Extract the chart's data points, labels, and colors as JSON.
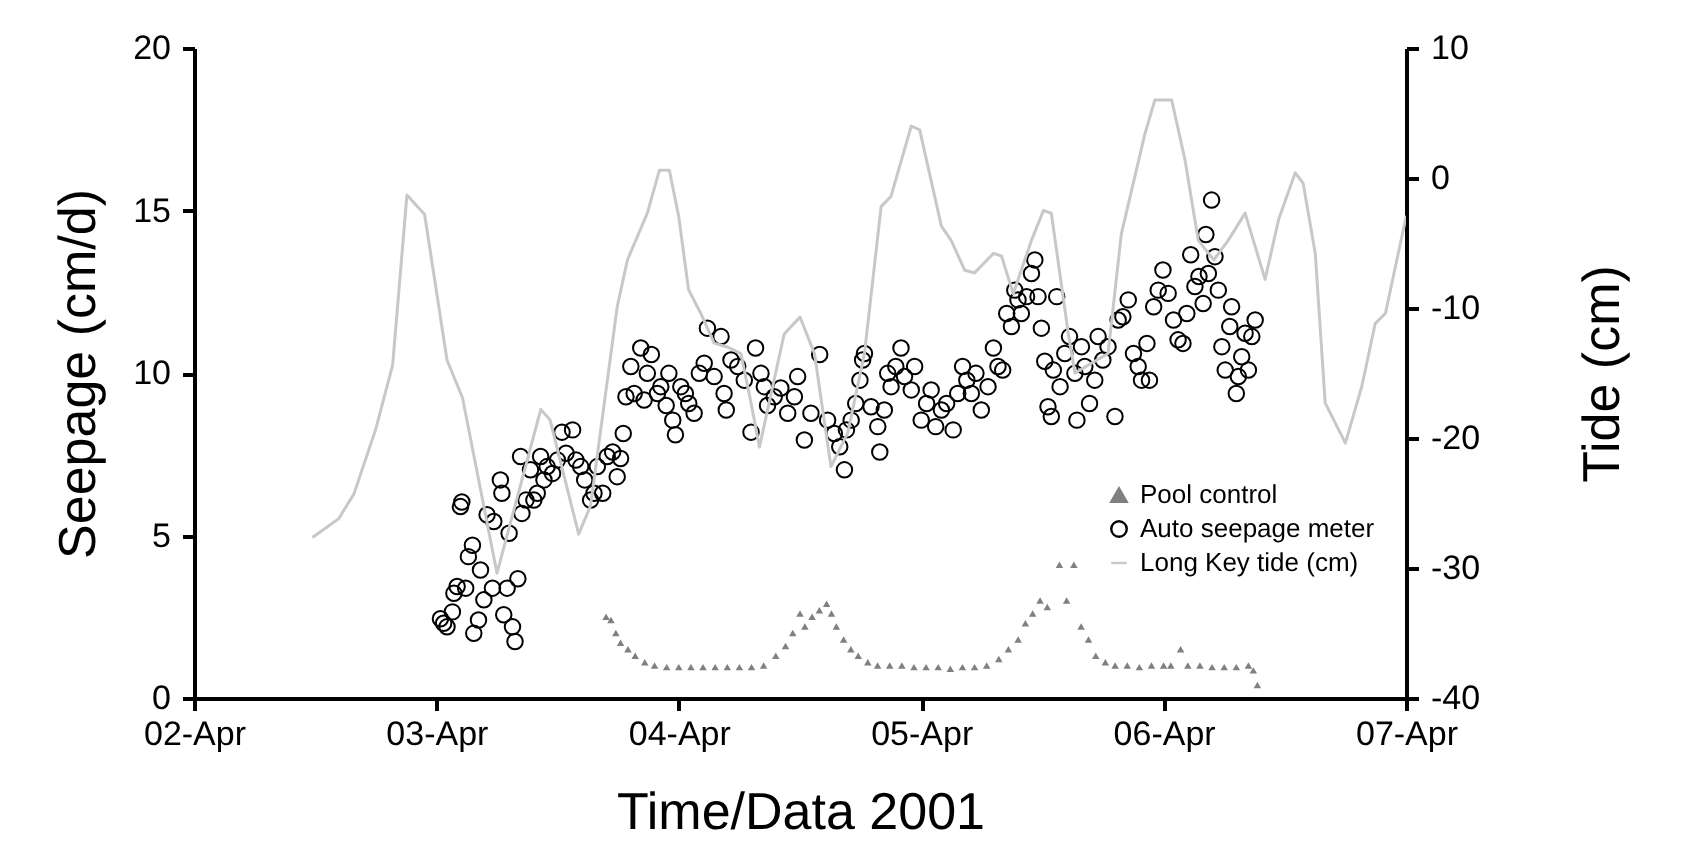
{
  "chart_data": {
    "type": "scatter",
    "xlabel": "Time/Data 2001",
    "ylabel": "Seepage (cm/d)",
    "y2label": "Tide (cm)",
    "xlim": [
      "2001-04-02",
      "2001-04-07"
    ],
    "xticks": [
      {
        "value": "2001-04-02",
        "label": "02-Apr"
      },
      {
        "value": "2001-04-03",
        "label": "03-Apr"
      },
      {
        "value": "2001-04-04",
        "label": "04-Apr"
      },
      {
        "value": "2001-04-05",
        "label": "05-Apr"
      },
      {
        "value": "2001-04-06",
        "label": "06-Apr"
      },
      {
        "value": "2001-04-07",
        "label": "07-Apr"
      }
    ],
    "ylim": [
      0,
      20
    ],
    "yticks": [
      0,
      5,
      10,
      15,
      20
    ],
    "y2lim": [
      -40,
      10
    ],
    "y2ticks": [
      -40,
      -30,
      -20,
      -10,
      0,
      10
    ],
    "grid": false,
    "legend": "bottom right",
    "series": [
      {
        "name": "Pool control",
        "marker": "triangle",
        "color": "#808080",
        "x": [
          "2001-04-03T16:48",
          "2001-04-03T17:17",
          "2001-04-03T17:46",
          "2001-04-03T18:14",
          "2001-04-03T18:58",
          "2001-04-03T19:41",
          "2001-04-03T20:38",
          "2001-04-03T21:36",
          "2001-04-03T22:48",
          "2001-04-04T00:00",
          "2001-04-04T01:12",
          "2001-04-04T02:24",
          "2001-04-04T03:36",
          "2001-04-04T04:48",
          "2001-04-04T06:00",
          "2001-04-04T07:12",
          "2001-04-04T08:24",
          "2001-04-04T09:36",
          "2001-04-04T10:34",
          "2001-04-04T11:17",
          "2001-04-04T12:00",
          "2001-04-04T12:29",
          "2001-04-04T13:12",
          "2001-04-04T13:55",
          "2001-04-04T14:38",
          "2001-04-04T15:07",
          "2001-04-04T15:36",
          "2001-04-04T16:19",
          "2001-04-04T17:02",
          "2001-04-04T17:46",
          "2001-04-04T18:43",
          "2001-04-04T19:41",
          "2001-04-04T20:53",
          "2001-04-04T22:05",
          "2001-04-04T23:17",
          "2001-04-05T00:29",
          "2001-04-05T01:41",
          "2001-04-05T02:53",
          "2001-04-05T04:05",
          "2001-04-05T05:17",
          "2001-04-05T06:29",
          "2001-04-05T07:41",
          "2001-04-05T08:38",
          "2001-04-05T09:36",
          "2001-04-05T10:19",
          "2001-04-05T11:02",
          "2001-04-05T11:46",
          "2001-04-05T12:29",
          "2001-04-05T13:41",
          "2001-04-05T14:24",
          "2001-04-05T15:07",
          "2001-04-05T15:50",
          "2001-04-05T16:34",
          "2001-04-05T17:17",
          "2001-04-05T18:14",
          "2001-04-05T19:12",
          "2001-04-05T20:24",
          "2001-04-05T21:36",
          "2001-04-05T22:48",
          "2001-04-06T00:00",
          "2001-04-06T00:43",
          "2001-04-06T01:41",
          "2001-04-06T02:24",
          "2001-04-06T03:36",
          "2001-04-06T04:48",
          "2001-04-06T06:00",
          "2001-04-06T07:12",
          "2001-04-06T08:24",
          "2001-04-06T08:53",
          "2001-04-06T09:17"
        ],
        "values": [
          2.5,
          2.4,
          2.0,
          1.7,
          1.5,
          1.3,
          1.1,
          1.0,
          0.95,
          0.95,
          0.95,
          0.95,
          0.95,
          0.95,
          0.95,
          0.95,
          1.0,
          1.3,
          1.6,
          2.0,
          2.6,
          2.2,
          2.5,
          2.7,
          2.9,
          2.6,
          2.2,
          1.8,
          1.5,
          1.3,
          1.1,
          1.0,
          1.0,
          1.0,
          0.95,
          0.95,
          0.95,
          0.9,
          0.95,
          0.95,
          1.0,
          1.2,
          1.5,
          1.8,
          2.3,
          2.6,
          3.0,
          2.8,
          4.1,
          3.0,
          4.1,
          2.2,
          1.8,
          1.3,
          1.1,
          1.0,
          1.0,
          0.95,
          1.0,
          1.0,
          1.0,
          1.5,
          1.0,
          1.0,
          0.95,
          0.95,
          0.95,
          1.0,
          0.85,
          0.4
        ]
      },
      {
        "name": "Auto seepage meter",
        "marker": "circle",
        "color": "#000000",
        "x": [
          "2001-04-03T00:24",
          "2001-04-03T00:43",
          "2001-04-03T01:03",
          "2001-04-03T01:35",
          "2001-04-03T01:44",
          "2001-04-03T02:03",
          "2001-04-03T02:23",
          "2001-04-03T02:31",
          "2001-04-03T02:54",
          "2001-04-03T03:10",
          "2001-04-03T03:34",
          "2001-04-03T03:42",
          "2001-04-03T04:10",
          "2001-04-03T04:22",
          "2001-04-03T04:42",
          "2001-04-03T05:01",
          "2001-04-03T05:33",
          "2001-04-03T05:41",
          "2001-04-03T06:20",
          "2001-04-03T06:29",
          "2001-04-03T06:40",
          "2001-04-03T07:00",
          "2001-04-03T07:12",
          "2001-04-03T07:32",
          "2001-04-03T07:47",
          "2001-04-03T08:04",
          "2001-04-03T08:20",
          "2001-04-03T08:28",
          "2001-04-03T08:52",
          "2001-04-03T09:19",
          "2001-04-03T09:39",
          "2001-04-03T09:59",
          "2001-04-03T10:19",
          "2001-04-03T10:39",
          "2001-04-03T10:58",
          "2001-04-03T11:30",
          "2001-04-03T11:59",
          "2001-04-03T12:26",
          "2001-04-03T12:50",
          "2001-04-03T13:29",
          "2001-04-03T13:49",
          "2001-04-03T14:17",
          "2001-04-03T14:41",
          "2001-04-03T15:16",
          "2001-04-03T15:36",
          "2001-04-03T15:56",
          "2001-04-03T16:28",
          "2001-04-03T16:55",
          "2001-04-03T17:27",
          "2001-04-03T17:54",
          "2001-04-03T18:14",
          "2001-04-03T18:30",
          "2001-04-03T18:46",
          "2001-04-03T19:15",
          "2001-04-03T19:35",
          "2001-04-03T20:14",
          "2001-04-03T20:34",
          "2001-04-03T20:53",
          "2001-04-03T21:17",
          "2001-04-03T21:53",
          "2001-04-03T22:13",
          "2001-04-03T22:45",
          "2001-04-03T23:01",
          "2001-04-03T23:24",
          "2001-04-03T23:40",
          "2001-04-04T00:12",
          "2001-04-04T00:39",
          "2001-04-04T00:59",
          "2001-04-04T01:31",
          "2001-04-04T02:02",
          "2001-04-04T02:31",
          "2001-04-04T02:50",
          "2001-04-04T03:30",
          "2001-04-04T04:11",
          "2001-04-04T04:29",
          "2001-04-04T04:42",
          "2001-04-04T05:10",
          "2001-04-04T05:50",
          "2001-04-04T06:29",
          "2001-04-04T07:09",
          "2001-04-04T07:36",
          "2001-04-04T08:08",
          "2001-04-04T08:28",
          "2001-04-04T08:47",
          "2001-04-04T09:27",
          "2001-04-04T10:06",
          "2001-04-04T10:47",
          "2001-04-04T11:27",
          "2001-04-04T11:46",
          "2001-04-04T12:26",
          "2001-04-04T13:05",
          "2001-04-04T13:57",
          "2001-04-04T14:44",
          "2001-04-04T15:24",
          "2001-04-04T15:56",
          "2001-04-04T16:24",
          "2001-04-04T16:36",
          "2001-04-04T17:04",
          "2001-04-04T17:31",
          "2001-04-04T17:56",
          "2001-04-04T18:12",
          "2001-04-04T18:23",
          "2001-04-04T19:02",
          "2001-04-04T19:42",
          "2001-04-04T19:54",
          "2001-04-04T20:21",
          "2001-04-04T20:41",
          "2001-04-04T21:01",
          "2001-04-04T21:29",
          "2001-04-04T22:00",
          "2001-04-04T22:21",
          "2001-04-04T23:01",
          "2001-04-04T23:21",
          "2001-04-05T00:00",
          "2001-04-05T00:32",
          "2001-04-05T00:59",
          "2001-04-05T01:26",
          "2001-04-05T02:00",
          "2001-04-05T02:31",
          "2001-04-05T03:10",
          "2001-04-05T03:37",
          "2001-04-05T04:06",
          "2001-04-05T04:31",
          "2001-04-05T04:58",
          "2001-04-05T05:25",
          "2001-04-05T05:57",
          "2001-04-05T06:37",
          "2001-04-05T07:09",
          "2001-04-05T07:36",
          "2001-04-05T08:04",
          "2001-04-05T08:28",
          "2001-04-05T08:56",
          "2001-04-05T09:16",
          "2001-04-05T09:35",
          "2001-04-05T09:55",
          "2001-04-05T10:26",
          "2001-04-05T10:55",
          "2001-04-05T11:15",
          "2001-04-05T11:34",
          "2001-04-05T11:54",
          "2001-04-05T12:14",
          "2001-04-05T12:33",
          "2001-04-05T12:53",
          "2001-04-05T13:05",
          "2001-04-05T13:25",
          "2001-04-05T13:45",
          "2001-04-05T14:13",
          "2001-04-05T14:41",
          "2001-04-05T15:13",
          "2001-04-05T15:25",
          "2001-04-05T15:52",
          "2001-04-05T16:12",
          "2001-04-05T16:40",
          "2001-04-05T17:11",
          "2001-04-05T17:31",
          "2001-04-05T17:59",
          "2001-04-05T18:30",
          "2001-04-05T19:11",
          "2001-04-05T19:30",
          "2001-04-05T19:58",
          "2001-04-05T20:30",
          "2001-04-05T21:01",
          "2001-04-05T21:29",
          "2001-04-05T21:49",
          "2001-04-05T22:21",
          "2001-04-05T22:36",
          "2001-04-05T23:01",
          "2001-04-05T23:28",
          "2001-04-05T23:56",
          "2001-04-06T00:27",
          "2001-04-06T00:59",
          "2001-04-06T01:26",
          "2001-04-06T01:55",
          "2001-04-06T02:18",
          "2001-04-06T02:41",
          "2001-04-06T03:06",
          "2001-04-06T03:30",
          "2001-04-06T03:55",
          "2001-04-06T04:11",
          "2001-04-06T04:26",
          "2001-04-06T04:45",
          "2001-04-06T05:05",
          "2001-04-06T05:25",
          "2001-04-06T05:46",
          "2001-04-06T06:06",
          "2001-04-06T06:33",
          "2001-04-06T06:44",
          "2001-04-06T07:12",
          "2001-04-06T07:24",
          "2001-04-06T07:44",
          "2001-04-06T08:04",
          "2001-04-06T08:24",
          "2001-04-06T08:44",
          "2001-04-06T09:04"
        ],
        "values": [
          2.44,
          2.3,
          2.19,
          2.65,
          3.22,
          3.43,
          5.89,
          6.03,
          3.38,
          4.35,
          4.7,
          1.99,
          2.4,
          3.94,
          3.02,
          5.64,
          3.38,
          5.43,
          6.71,
          6.3,
          2.56,
          3.38,
          5.07,
          2.19,
          1.74,
          3.67,
          7.43,
          5.68,
          6.09,
          7.02,
          6.09,
          6.3,
          7.43,
          6.71,
          7.12,
          6.91,
          7.32,
          8.18,
          7.53,
          8.25,
          7.32,
          7.12,
          6.71,
          6.09,
          6.3,
          7.12,
          6.3,
          7.43,
          7.57,
          6.81,
          7.37,
          8.14,
          9.27,
          10.2,
          9.37,
          10.77,
          9.17,
          9.99,
          10.57,
          9.37,
          9.58,
          9.0,
          9.99,
          8.55,
          8.1,
          9.58,
          9.37,
          9.06,
          8.76,
          9.99,
          10.3,
          11.38,
          9.89,
          11.12,
          9.37,
          8.86,
          10.4,
          10.2,
          9.78,
          8.18,
          10.77,
          9.99,
          9.58,
          9.0,
          9.27,
          9.54,
          8.76,
          9.27,
          9.89,
          7.94,
          8.76,
          10.57,
          8.55,
          8.14,
          7.73,
          7.02,
          8.25,
          8.55,
          9.06,
          9.78,
          10.4,
          10.6,
          8.96,
          8.35,
          7.57,
          8.86,
          9.99,
          9.58,
          10.2,
          10.77,
          9.89,
          9.48,
          10.2,
          8.55,
          9.06,
          9.48,
          8.35,
          8.86,
          9.06,
          8.25,
          9.37,
          10.2,
          9.78,
          9.37,
          9.99,
          8.86,
          9.58,
          10.77,
          10.2,
          10.09,
          11.83,
          11.43,
          12.55,
          12.25,
          11.83,
          12.35,
          13.06,
          13.48,
          12.35,
          11.38,
          10.36,
          8.96,
          8.66,
          10.09,
          12.35,
          9.58,
          10.6,
          11.12,
          9.99,
          8.55,
          10.81,
          10.2,
          9.06,
          9.78,
          11.12,
          10.4,
          10.81,
          8.66,
          11.63,
          11.73,
          12.25,
          10.6,
          10.2,
          9.78,
          10.91,
          9.78,
          12.04,
          12.55,
          13.17,
          12.45,
          11.63,
          11.02,
          10.91,
          11.83,
          13.64,
          12.66,
          12.97,
          12.14,
          14.26,
          13.06,
          15.32,
          13.58,
          12.55,
          10.81,
          10.09,
          11.43,
          12.04,
          9.37,
          9.89,
          10.5,
          11.22,
          10.09,
          11.12,
          11.63
        ]
      },
      {
        "name": "Long Key tide (cm)",
        "type": "line",
        "axis": "y2",
        "color": "#c8c8c8",
        "line_style": "solid",
        "x": [
          "2001-04-02T11:50",
          "2001-04-02T14:20",
          "2001-04-02T15:50",
          "2001-04-02T18:00",
          "2001-04-02T19:40",
          "2001-04-02T21:05",
          "2001-04-02T22:50",
          "2001-04-03T01:03",
          "2001-04-03T02:35",
          "2001-04-03T06:00",
          "2001-04-03T10:20",
          "2001-04-03T11:15",
          "2001-04-03T14:05",
          "2001-04-03T15:16",
          "2001-04-03T17:54",
          "2001-04-03T18:55",
          "2001-04-03T20:53",
          "2001-04-03T22:05",
          "2001-04-03T23:04",
          "2001-04-04T00:00",
          "2001-04-04T00:58",
          "2001-04-04T02:10",
          "2001-04-04T03:30",
          "2001-04-04T04:48",
          "2001-04-04T06:09",
          "2001-04-04T07:09",
          "2001-04-04T07:59",
          "2001-04-04T10:26",
          "2001-04-04T12:00",
          "2001-04-04T13:26",
          "2001-04-04T15:04",
          "2001-04-04T16:44",
          "2001-04-04T18:23",
          "2001-04-04T20:02",
          "2001-04-04T21:01",
          "2001-04-04T23:01",
          "2001-04-04T23:51",
          "2001-04-05T02:00",
          "2001-04-05T02:58",
          "2001-04-05T04:19",
          "2001-04-05T05:17",
          "2001-04-05T07:09",
          "2001-04-05T07:57",
          "2001-04-05T09:07",
          "2001-04-05T10:55",
          "2001-04-05T12:06",
          "2001-04-05T12:53",
          "2001-04-05T14:33",
          "2001-04-05T15:13",
          "2001-04-05T18:30",
          "2001-04-05T19:49",
          "2001-04-05T22:09",
          "2001-04-05T23:08",
          "2001-04-06T00:48",
          "2001-04-06T02:07",
          "2001-04-06T03:26",
          "2001-04-06T04:58",
          "2001-04-06T06:24",
          "2001-04-06T08:04",
          "2001-04-06T10:03",
          "2001-04-06T11:23",
          "2001-04-06T13:02",
          "2001-04-06T13:49",
          "2001-04-06T15:01",
          "2001-04-06T16:00",
          "2001-04-06T18:00",
          "2001-04-06T19:38",
          "2001-04-06T20:57",
          "2001-04-06T21:58",
          "2001-04-07T00:00"
        ],
        "values": [
          -27.6,
          -26.2,
          -24.3,
          -19.3,
          -14.4,
          -1.3,
          -2.8,
          -14.0,
          -16.9,
          -30.4,
          -17.8,
          -18.6,
          -27.4,
          -25.2,
          -9.9,
          -6.3,
          -2.7,
          0.6,
          0.6,
          -3.0,
          -8.6,
          -10.4,
          -12.7,
          -13.0,
          -13.5,
          -17.3,
          -20.7,
          -12.0,
          -10.7,
          -13.5,
          -22.2,
          -19.6,
          -13.5,
          -2.2,
          -1.4,
          4.0,
          3.7,
          -3.7,
          -4.8,
          -7.1,
          -7.3,
          -5.8,
          -6.0,
          -8.9,
          -4.8,
          -2.5,
          -2.7,
          -11.9,
          -15.0,
          -13.5,
          -4.3,
          3.4,
          6.0,
          6.0,
          1.4,
          -4.8,
          -6.3,
          -4.8,
          -2.7,
          -7.8,
          -3.2,
          0.4,
          -0.4,
          -5.8,
          -17.3,
          -20.4,
          -16.0,
          -11.2,
          -10.4,
          -3.0
        ]
      }
    ]
  }
}
